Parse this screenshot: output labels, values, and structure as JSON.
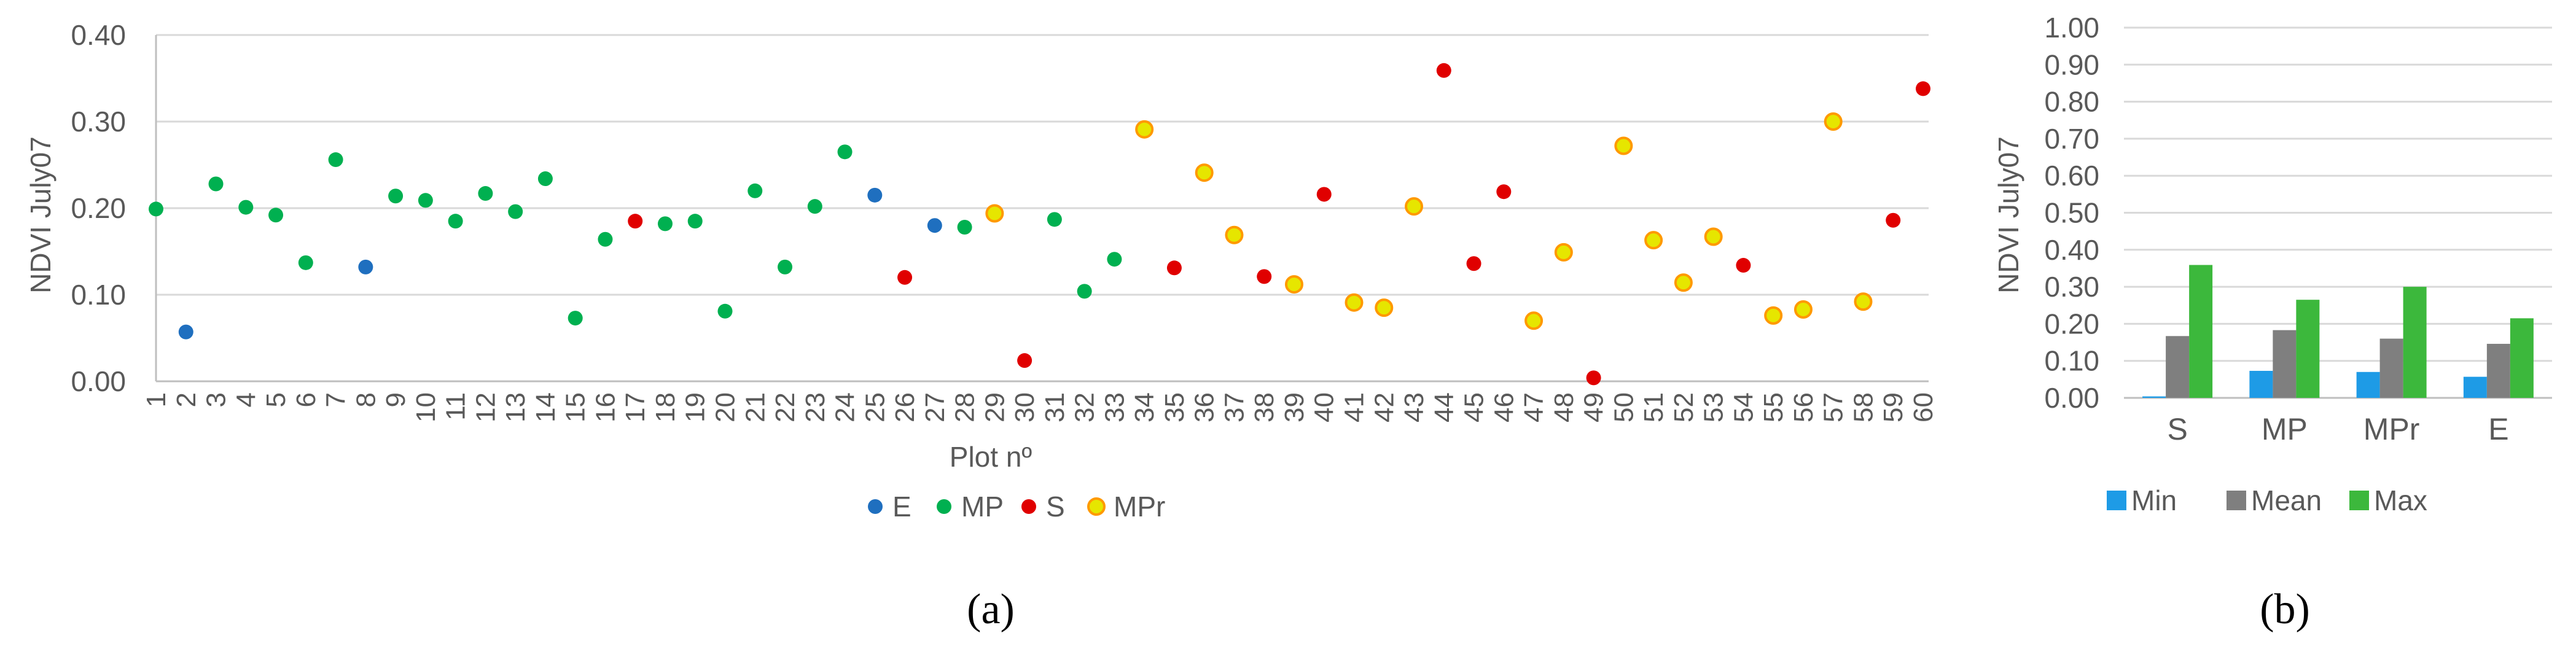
{
  "colors": {
    "E": "#1f6fbf",
    "MP": "#00b050",
    "S": "#e00000",
    "MPr_fill": "#e6e600",
    "MPr_stroke": "#ff9900",
    "Min": "#1e9be6",
    "Mean": "#7f7f7f",
    "Max": "#3cb83c",
    "grid": "#d9d9d9",
    "text": "#595959"
  },
  "chart_data": [
    {
      "id": "a",
      "type": "scatter",
      "panel_label": "(a)",
      "xlabel": "Plot nº",
      "ylabel": "NDVI July07",
      "ylim": [
        0,
        0.4
      ],
      "yticks": [
        "0.00",
        "0.10",
        "0.20",
        "0.30",
        "0.40"
      ],
      "xticks": [
        "1",
        "2",
        "3",
        "4",
        "5",
        "6",
        "7",
        "8",
        "9",
        "10",
        "11",
        "12",
        "13",
        "14",
        "15",
        "16",
        "17",
        "18",
        "19",
        "20",
        "21",
        "22",
        "23",
        "24",
        "25",
        "26",
        "27",
        "28",
        "29",
        "30",
        "31",
        "32",
        "33",
        "34",
        "35",
        "36",
        "37",
        "38",
        "39",
        "40",
        "41",
        "42",
        "43",
        "44",
        "45",
        "46",
        "47",
        "48",
        "49",
        "50",
        "51",
        "52",
        "53",
        "54",
        "55",
        "56",
        "57",
        "58",
        "59",
        "60"
      ],
      "grid": true,
      "legend_position": "bottom",
      "series": [
        {
          "name": "E",
          "x": [
            2,
            8,
            25,
            27
          ],
          "y": [
            0.057,
            0.132,
            0.215,
            0.18
          ]
        },
        {
          "name": "MP",
          "x": [
            1,
            3,
            4,
            5,
            6,
            7,
            9,
            10,
            11,
            12,
            13,
            14,
            15,
            16,
            18,
            19,
            20,
            21,
            22,
            23,
            24,
            28,
            31,
            32,
            33
          ],
          "y": [
            0.199,
            0.228,
            0.201,
            0.192,
            0.137,
            0.256,
            0.214,
            0.209,
            0.185,
            0.217,
            0.196,
            0.234,
            0.073,
            0.164,
            0.182,
            0.185,
            0.081,
            0.22,
            0.132,
            0.202,
            0.265,
            0.178,
            0.187,
            0.104,
            0.141
          ]
        },
        {
          "name": "S",
          "x": [
            17,
            26,
            30,
            35,
            38,
            40,
            44,
            45,
            46,
            49,
            54,
            59,
            60
          ],
          "y": [
            0.185,
            0.12,
            0.024,
            0.131,
            0.121,
            0.216,
            0.359,
            0.136,
            0.219,
            0.004,
            0.134,
            0.186,
            0.338
          ]
        },
        {
          "name": "MPr",
          "x": [
            29,
            34,
            36,
            37,
            39,
            41,
            42,
            43,
            47,
            48,
            50,
            51,
            52,
            53,
            55,
            56,
            57,
            58
          ],
          "y": [
            0.194,
            0.291,
            0.241,
            0.169,
            0.112,
            0.091,
            0.085,
            0.202,
            0.07,
            0.149,
            0.272,
            0.163,
            0.114,
            0.167,
            0.076,
            0.083,
            0.3,
            0.092
          ]
        }
      ]
    },
    {
      "id": "b",
      "type": "bar",
      "panel_label": "(b)",
      "ylabel": "NDVI July07",
      "ylim": [
        0,
        1
      ],
      "yticks": [
        "0.00",
        "0.10",
        "0.20",
        "0.30",
        "0.40",
        "0.50",
        "0.60",
        "0.70",
        "0.80",
        "0.90",
        "1.00"
      ],
      "categories": [
        "S",
        "MP",
        "MPr",
        "E"
      ],
      "grid": true,
      "legend_position": "bottom",
      "series": [
        {
          "name": "Min",
          "values": [
            0.004,
            0.073,
            0.07,
            0.057
          ]
        },
        {
          "name": "Mean",
          "values": [
            0.167,
            0.183,
            0.16,
            0.146
          ]
        },
        {
          "name": "Max",
          "values": [
            0.359,
            0.265,
            0.3,
            0.215
          ]
        }
      ]
    }
  ]
}
